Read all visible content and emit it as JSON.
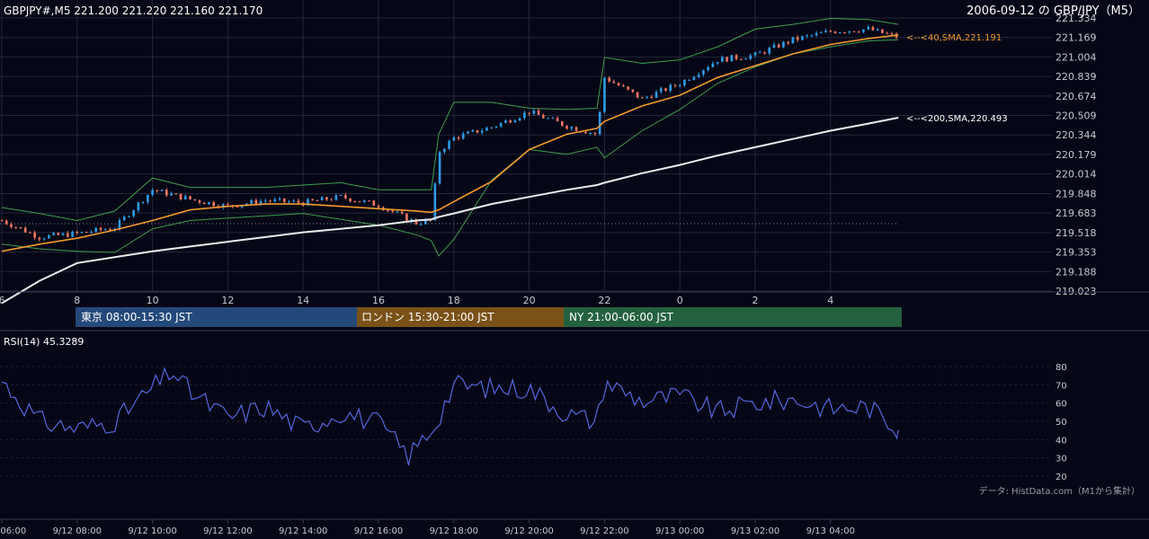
{
  "header": {
    "symbol_line": "GBPJPY#,M5 221.200 221.220 221.160 221.170",
    "date_title": "2006-09-12 の GBP/JPY（M5）"
  },
  "colors": {
    "background": "#060716",
    "grid": "#23263a",
    "axis_text": "#c8c8d0",
    "candle_up": "#2f9ae6",
    "candle_down": "#ef7660",
    "sma40": "#f29a2e",
    "sma200": "#ececec",
    "bollinger": "#3f9e4e",
    "rsi_line": "#5567e0",
    "session_tokyo": "#23497a",
    "session_london": "#7a5218",
    "session_ny": "#24613f"
  },
  "price_axis": {
    "ticks": [
      "221.334",
      "221.169",
      "221.004",
      "220.839",
      "220.674",
      "220.509",
      "220.344",
      "220.179",
      "220.014",
      "219.848",
      "219.683",
      "219.518",
      "219.353",
      "219.188",
      "219.023"
    ]
  },
  "hour_axis": {
    "labels": [
      "6",
      "8",
      "10",
      "12",
      "14",
      "16",
      "18",
      "20",
      "22",
      "0",
      "2",
      "4"
    ]
  },
  "sessions": [
    {
      "label": "東京 08:00-15:30 JST",
      "key": "tokyo"
    },
    {
      "label": "ロンドン 15:30-21:00 JST",
      "key": "london"
    },
    {
      "label": "NY 21:00-06:00 JST",
      "key": "ny"
    }
  ],
  "rsi": {
    "label": "RSI(14) 45.3289",
    "ticks": [
      "80",
      "70",
      "60",
      "50",
      "40",
      "30",
      "20"
    ],
    "source_note": "データ: HistData.com（M1から集計）"
  },
  "time_axis": {
    "labels": [
      "9/12 06:00",
      "9/12 08:00",
      "9/12 10:00",
      "9/12 12:00",
      "9/12 14:00",
      "9/12 16:00",
      "9/12 18:00",
      "9/12 20:00",
      "9/12 22:00",
      "9/13 00:00",
      "9/13 02:00",
      "9/13 04:00"
    ]
  },
  "annotations": {
    "sma40_label": "<--<40,SMA,221.191",
    "sma200_label": "<--<200,SMA,220.493"
  },
  "chart_data": [
    {
      "type": "line",
      "title": "GBPJPY#,M5 221.200 221.220 221.160 221.170",
      "x_unit": "hours (JST)",
      "x": [
        6,
        7,
        8,
        9,
        10,
        11,
        12,
        13,
        14,
        15,
        16,
        17,
        17.4,
        17.6,
        18,
        19,
        20,
        21,
        21.8,
        22,
        23,
        0,
        1,
        2,
        3,
        4,
        5,
        5.8
      ],
      "ylim": [
        219.023,
        221.334
      ],
      "series": [
        {
          "name": "close",
          "values": [
            219.62,
            219.48,
            219.51,
            219.56,
            219.88,
            219.8,
            219.74,
            219.79,
            219.77,
            219.82,
            219.75,
            219.6,
            219.62,
            220.2,
            220.32,
            220.41,
            220.54,
            220.42,
            220.35,
            220.83,
            220.65,
            220.78,
            220.98,
            221.02,
            221.15,
            221.22,
            221.24,
            221.17
          ]
        },
        {
          "name": "40,SMA",
          "values": [
            219.36,
            219.42,
            219.47,
            219.54,
            219.62,
            219.71,
            219.74,
            219.76,
            219.76,
            219.74,
            219.72,
            219.7,
            219.69,
            219.71,
            219.78,
            219.95,
            220.22,
            220.35,
            220.4,
            220.46,
            220.59,
            220.68,
            220.83,
            220.93,
            221.03,
            221.11,
            221.16,
            221.19
          ]
        },
        {
          "name": "200,SMA",
          "values": [
            218.92,
            219.11,
            219.26,
            219.31,
            219.36,
            219.4,
            219.44,
            219.48,
            219.52,
            219.55,
            219.58,
            219.62,
            219.63,
            219.65,
            219.68,
            219.76,
            219.82,
            219.88,
            219.92,
            219.94,
            220.02,
            220.09,
            220.17,
            220.24,
            220.31,
            220.38,
            220.44,
            220.49
          ]
        },
        {
          "name": "BB upper",
          "values": [
            219.73,
            219.68,
            219.62,
            219.7,
            219.98,
            219.9,
            219.9,
            219.9,
            219.92,
            219.94,
            219.88,
            219.88,
            219.88,
            220.35,
            220.62,
            220.62,
            220.57,
            220.56,
            220.57,
            221.0,
            220.95,
            220.98,
            221.09,
            221.24,
            221.28,
            221.33,
            221.32,
            221.28
          ]
        },
        {
          "name": "BB lower",
          "values": [
            219.42,
            219.38,
            219.36,
            219.35,
            219.55,
            219.62,
            219.64,
            219.66,
            219.68,
            219.63,
            219.58,
            219.5,
            219.45,
            219.32,
            219.46,
            219.96,
            220.22,
            220.18,
            220.24,
            220.15,
            220.38,
            220.56,
            220.78,
            220.92,
            221.03,
            221.09,
            221.14,
            221.15
          ]
        }
      ]
    },
    {
      "type": "line",
      "title": "RSI(14) 45.3289",
      "x_unit": "hours (JST)",
      "x": [
        6,
        7,
        8,
        9,
        10,
        10.5,
        11,
        12,
        13,
        14,
        15,
        16,
        16.8,
        17.5,
        18,
        19,
        20,
        21,
        21.8,
        22,
        23,
        0,
        1,
        2,
        3,
        4,
        5,
        5.8
      ],
      "ylim": [
        20,
        80
      ],
      "series": [
        {
          "name": "RSI(14)",
          "values": [
            72,
            50,
            46,
            50,
            68,
            78,
            66,
            52,
            58,
            46,
            55,
            49,
            31,
            48,
            70,
            68,
            68,
            54,
            50,
            72,
            61,
            64,
            55,
            60,
            62,
            57,
            58,
            45.3289
          ]
        }
      ]
    }
  ]
}
